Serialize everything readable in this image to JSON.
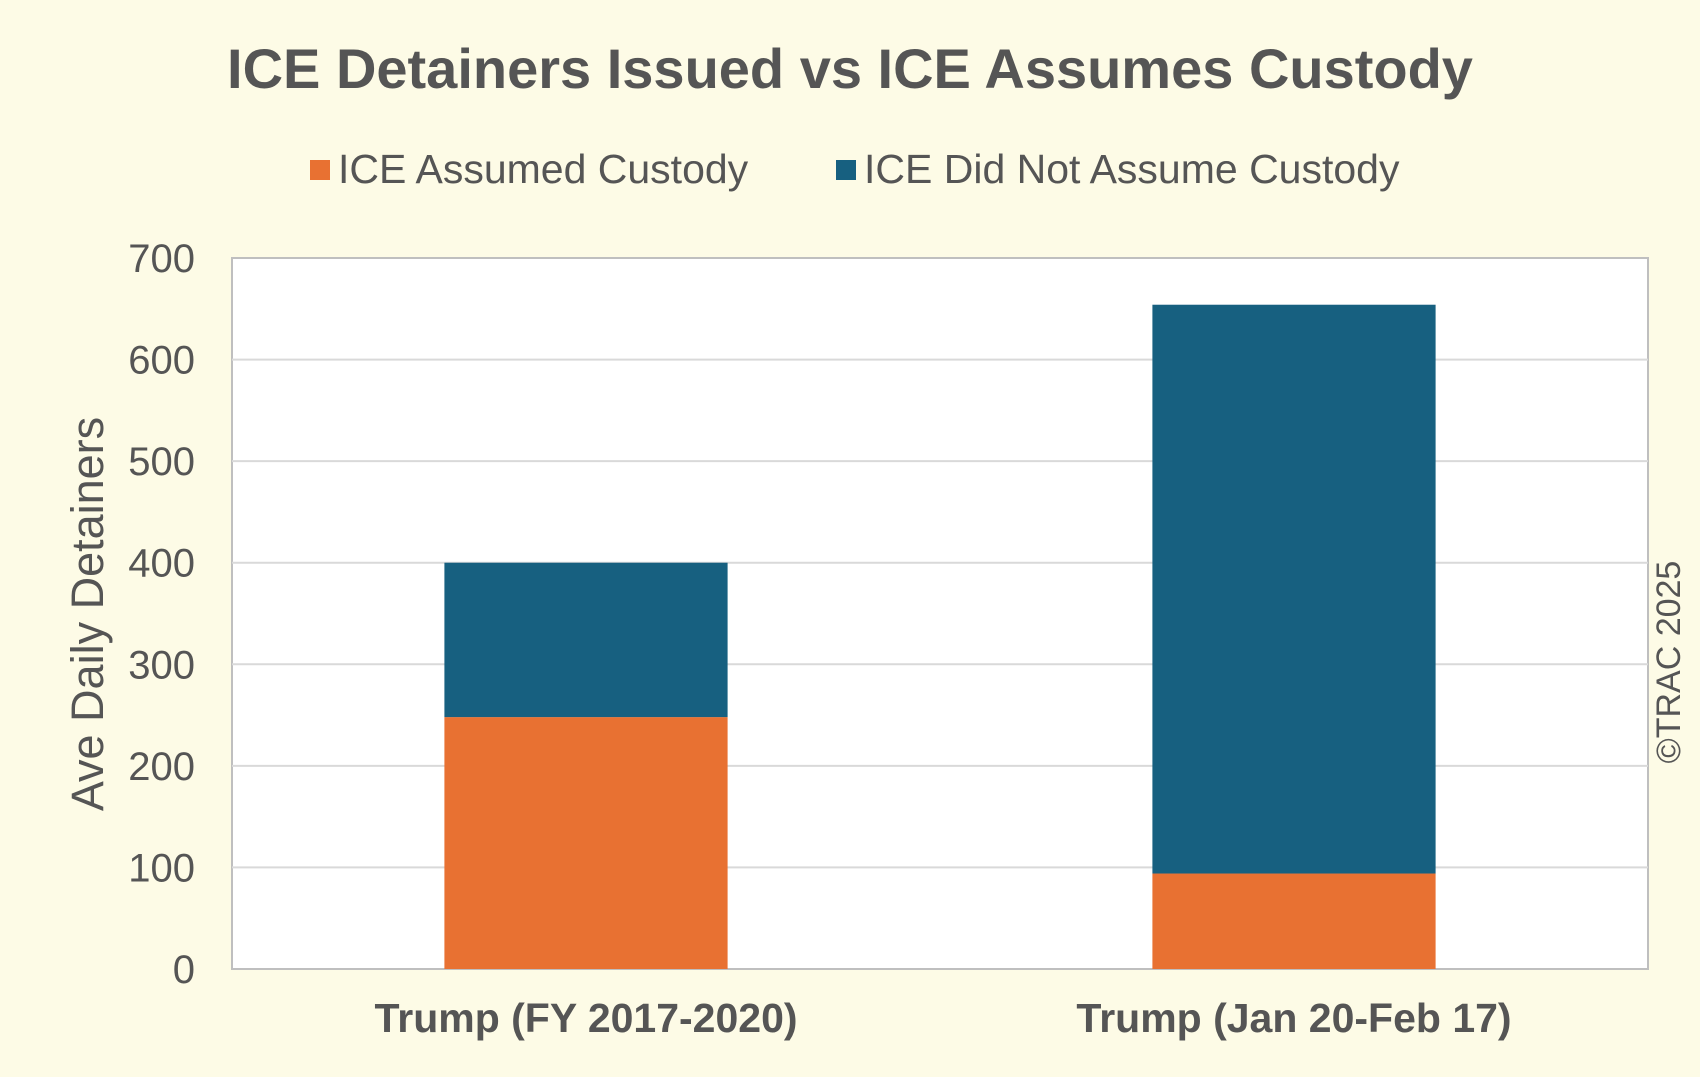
{
  "chart_data": {
    "type": "bar",
    "stacked": true,
    "title": "ICE Detainers Issued vs ICE Assumes Custody",
    "xlabel": "",
    "ylabel": "Ave Daily Detainers",
    "categories": [
      "Trump (FY 2017-2020)",
      "Trump (Jan 20-Feb 17)"
    ],
    "series": [
      {
        "name": "ICE Assumed Custody",
        "color": "#e87132",
        "values": [
          248,
          94
        ]
      },
      {
        "name": "ICE Did Not Assume Custody",
        "color": "#176080",
        "values": [
          152,
          560
        ]
      }
    ],
    "ylim": [
      0,
      700
    ],
    "yticks": [
      0,
      100,
      200,
      300,
      400,
      500,
      600,
      700
    ],
    "grid": true,
    "legend_position": "top-center"
  },
  "credit": "©TRAC 2025",
  "colors": {
    "background": "#fdfbe6",
    "plot_background": "#ffffff",
    "text": "#555555"
  }
}
